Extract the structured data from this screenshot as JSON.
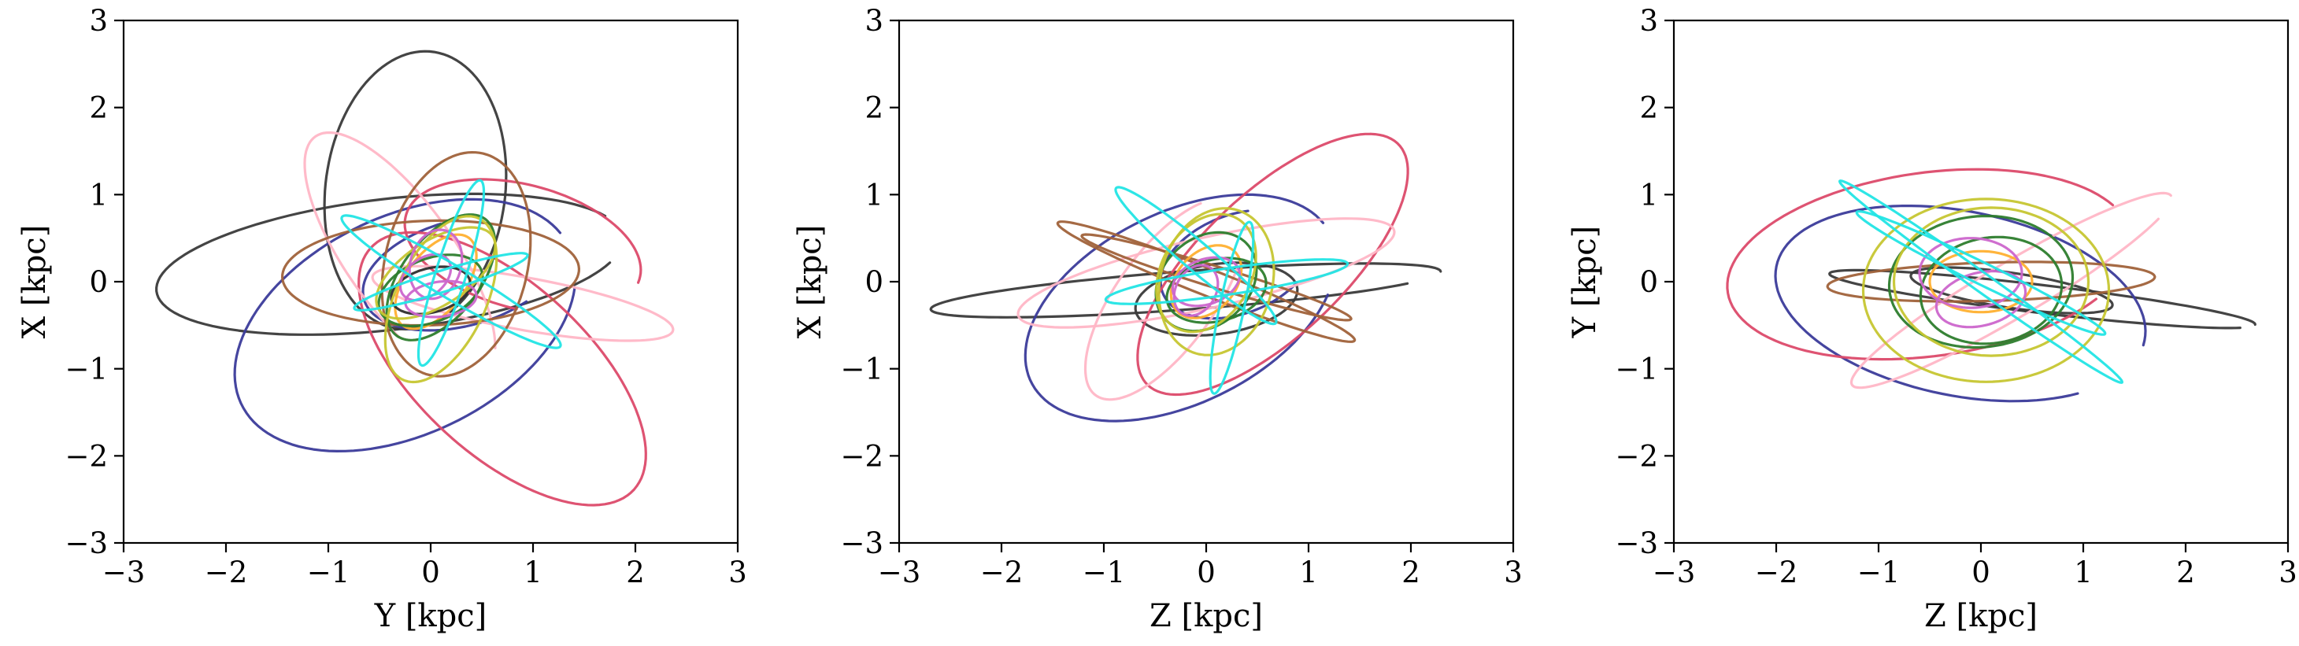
{
  "chart_data": [
    {
      "type": "line",
      "xlabel": "Y [kpc]",
      "ylabel": "X [kpc]",
      "xlim": [
        -3,
        3
      ],
      "ylim": [
        -3,
        3
      ],
      "xticks": [
        -3,
        -2,
        -1,
        0,
        1,
        2,
        3
      ],
      "yticks": [
        -3,
        -2,
        -1,
        0,
        1,
        2,
        3
      ],
      "xtick_labels": [
        "−3",
        "−2",
        "−1",
        "0",
        "1",
        "2",
        "3"
      ],
      "ytick_labels": [
        "−3",
        "−2",
        "−1",
        "0",
        "1",
        "2",
        "3"
      ],
      "series": [
        {
          "color": "#3a3a3a",
          "ellipses": [
            {
              "cx": -0.15,
              "cy": 1.05,
              "a": 1.6,
              "b": 0.88,
              "rot": 85,
              "t0": 60,
              "t1": 420
            },
            {
              "cx": -0.4,
              "cy": 0.2,
              "a": 2.3,
              "b": 0.75,
              "rot": 8,
              "t0": 20,
              "t1": 340
            }
          ]
        },
        {
          "color": "#3b3b9a",
          "ellipses": [
            {
              "cx": -0.25,
              "cy": -0.5,
              "a": 1.85,
              "b": 1.2,
              "rot": 35,
              "t0": 0,
              "t1": 330
            },
            {
              "cx": 0.3,
              "cy": 0.1,
              "a": 1.0,
              "b": 0.6,
              "rot": 20,
              "t0": 80,
              "t1": 300
            }
          ]
        },
        {
          "color": "#dc4a6a",
          "ellipses": [
            {
              "cx": 0.7,
              "cy": -1.0,
              "a": 1.9,
              "b": 0.9,
              "rot": -50,
              "t0": 0,
              "t1": 360
            },
            {
              "cx": 0.9,
              "cy": 0.4,
              "a": 1.2,
              "b": 0.7,
              "rot": -20,
              "t0": 0,
              "t1": 280
            }
          ]
        },
        {
          "color": "#ffb6c6",
          "ellipses": [
            {
              "cx": -0.3,
              "cy": 0.3,
              "a": 1.6,
              "b": 0.55,
              "rot": -60,
              "t0": 30,
              "t1": 300
            },
            {
              "cx": 0.9,
              "cy": -0.25,
              "a": 1.5,
              "b": 0.3,
              "rot": -12,
              "t0": 0,
              "t1": 360
            }
          ]
        },
        {
          "color": "#a0623a",
          "ellipses": [
            {
              "cx": 0.25,
              "cy": 0.2,
              "a": 1.3,
              "b": 0.7,
              "rot": 80,
              "t0": 0,
              "t1": 360
            },
            {
              "cx": 0.0,
              "cy": 0.1,
              "a": 1.45,
              "b": 0.6,
              "rot": 2,
              "t0": 0,
              "t1": 360
            }
          ]
        },
        {
          "color": "#ffb030",
          "ellipses": [
            {
              "cx": 0.05,
              "cy": 0.0,
              "a": 0.6,
              "b": 0.3,
              "rot": 60,
              "t0": 0,
              "t1": 360
            }
          ]
        },
        {
          "color": "#2e2e2e",
          "ellipses": [
            {
              "cx": 0.0,
              "cy": -0.1,
              "a": 0.4,
              "b": 0.25,
              "rot": 20,
              "t0": 0,
              "t1": 360
            }
          ]
        },
        {
          "color": "#2d7d2d",
          "ellipses": [
            {
              "cx": 0.1,
              "cy": 0.05,
              "a": 0.8,
              "b": 0.4,
              "rot": 60,
              "t0": 0,
              "t1": 360
            },
            {
              "cx": 0.0,
              "cy": -0.1,
              "a": 0.55,
              "b": 0.35,
              "rot": 30,
              "t0": 0,
              "t1": 360
            }
          ]
        },
        {
          "color": "#c6c632",
          "ellipses": [
            {
              "cx": 0.1,
              "cy": -0.2,
              "a": 1.0,
              "b": 0.45,
              "rot": 70,
              "t0": 0,
              "t1": 360
            },
            {
              "cx": 0.05,
              "cy": 0.1,
              "a": 0.7,
              "b": 0.35,
              "rot": 40,
              "t0": 0,
              "t1": 360
            }
          ]
        },
        {
          "color": "#cc66cc",
          "ellipses": [
            {
              "cx": 0.05,
              "cy": 0.2,
              "a": 0.4,
              "b": 0.25,
              "rot": 80,
              "t0": 0,
              "t1": 360
            },
            {
              "cx": 0.1,
              "cy": -0.2,
              "a": 0.35,
              "b": 0.2,
              "rot": 10,
              "t0": 0,
              "t1": 360
            },
            {
              "cx": -0.05,
              "cy": 0.05,
              "a": 0.3,
              "b": 0.2,
              "rot": 50,
              "t0": 0,
              "t1": 360
            }
          ]
        },
        {
          "color": "#22e5e5",
          "ellipses": [
            {
              "cx": 0.2,
              "cy": 0.0,
              "a": 1.3,
              "b": 0.18,
              "rot": -35,
              "t0": 0,
              "t1": 360
            },
            {
              "cx": 0.2,
              "cy": 0.1,
              "a": 1.1,
              "b": 0.15,
              "rot": 75,
              "t0": 0,
              "t1": 360
            },
            {
              "cx": 0.1,
              "cy": 0.0,
              "a": 0.9,
              "b": 0.12,
              "rot": 20,
              "t0": 0,
              "t1": 360
            }
          ]
        }
      ]
    },
    {
      "type": "line",
      "xlabel": "Z [kpc]",
      "ylabel": "X [kpc]",
      "xlim": [
        -3,
        3
      ],
      "ylim": [
        -3,
        3
      ],
      "xticks": [
        -3,
        -2,
        -1,
        0,
        1,
        2,
        3
      ],
      "yticks": [
        -3,
        -2,
        -1,
        0,
        1,
        2,
        3
      ],
      "xtick_labels": [
        "−3",
        "−2",
        "−1",
        "0",
        "1",
        "2",
        "3"
      ],
      "ytick_labels": [
        "−3",
        "−2",
        "−1",
        "0",
        "1",
        "2",
        "3"
      ],
      "series": [
        {
          "color": "#3a3a3a",
          "ellipses": [
            {
              "cx": -0.2,
              "cy": -0.1,
              "a": 2.5,
              "b": 0.22,
              "rot": 5,
              "t0": 0,
              "t1": 330
            },
            {
              "cx": 0.1,
              "cy": -0.2,
              "a": 0.8,
              "b": 0.4,
              "rot": 10,
              "t0": 0,
              "t1": 360
            }
          ]
        },
        {
          "color": "#3b3b9a",
          "ellipses": [
            {
              "cx": -0.25,
              "cy": -0.3,
              "a": 1.7,
              "b": 1.05,
              "rot": 35,
              "t0": 0,
              "t1": 320
            },
            {
              "cx": 0.3,
              "cy": 0.2,
              "a": 0.8,
              "b": 0.55,
              "rot": 30,
              "t0": 60,
              "t1": 300
            }
          ]
        },
        {
          "color": "#dc4a6a",
          "ellipses": [
            {
              "cx": 0.65,
              "cy": 0.2,
              "a": 1.85,
              "b": 0.75,
              "rot": 50,
              "t0": 0,
              "t1": 380
            }
          ]
        },
        {
          "color": "#ffb6c6",
          "ellipses": [
            {
              "cx": 0.0,
              "cy": 0.1,
              "a": 1.9,
              "b": 0.4,
              "rot": 15,
              "t0": 0,
              "t1": 360
            },
            {
              "cx": -0.4,
              "cy": -0.2,
              "a": 1.3,
              "b": 0.5,
              "rot": 60,
              "t0": 30,
              "t1": 300
            }
          ]
        },
        {
          "color": "#a0623a",
          "ellipses": [
            {
              "cx": 0.0,
              "cy": 0.0,
              "a": 1.6,
              "b": 0.15,
              "rot": -25,
              "t0": 0,
              "t1": 360
            },
            {
              "cx": 0.1,
              "cy": 0.05,
              "a": 1.4,
              "b": 0.12,
              "rot": -20,
              "t0": 0,
              "t1": 360
            }
          ]
        },
        {
          "color": "#ffb030",
          "ellipses": [
            {
              "cx": 0.0,
              "cy": 0.0,
              "a": 0.45,
              "b": 0.3,
              "rot": 60,
              "t0": 0,
              "t1": 360
            }
          ]
        },
        {
          "color": "#2d7d2d",
          "ellipses": [
            {
              "cx": 0.0,
              "cy": 0.0,
              "a": 0.6,
              "b": 0.45,
              "rot": 60,
              "t0": 0,
              "t1": 360
            },
            {
              "cx": 0.1,
              "cy": -0.1,
              "a": 0.5,
              "b": 0.35,
              "rot": 20,
              "t0": 0,
              "t1": 360
            }
          ]
        },
        {
          "color": "#c6c632",
          "ellipses": [
            {
              "cx": 0.1,
              "cy": 0.0,
              "a": 0.85,
              "b": 0.55,
              "rot": 80,
              "t0": 0,
              "t1": 360
            },
            {
              "cx": 0.0,
              "cy": 0.1,
              "a": 0.7,
              "b": 0.45,
              "rot": 70,
              "t0": 0,
              "t1": 360
            }
          ]
        },
        {
          "color": "#cc66cc",
          "ellipses": [
            {
              "cx": 0.0,
              "cy": 0.0,
              "a": 0.35,
              "b": 0.25,
              "rot": 30,
              "t0": 0,
              "t1": 360
            },
            {
              "cx": -0.1,
              "cy": -0.1,
              "a": 0.3,
              "b": 0.2,
              "rot": 70,
              "t0": 0,
              "t1": 360
            }
          ]
        },
        {
          "color": "#22e5e5",
          "ellipses": [
            {
              "cx": 0.2,
              "cy": 0.0,
              "a": 1.2,
              "b": 0.15,
              "rot": 10,
              "t0": 0,
              "t1": 360
            },
            {
              "cx": -0.1,
              "cy": 0.3,
              "a": 1.1,
              "b": 0.15,
              "rot": -45,
              "t0": 0,
              "t1": 360
            },
            {
              "cx": 0.25,
              "cy": -0.3,
              "a": 1.0,
              "b": 0.12,
              "rot": 80,
              "t0": 0,
              "t1": 360
            }
          ]
        }
      ]
    },
    {
      "type": "line",
      "xlabel": "Z [kpc]",
      "ylabel": "Y [kpc]",
      "xlim": [
        -3,
        3
      ],
      "ylim": [
        -3,
        3
      ],
      "xticks": [
        -3,
        -2,
        -1,
        0,
        1,
        2,
        3
      ],
      "yticks": [
        -3,
        -2,
        -1,
        0,
        1,
        2,
        3
      ],
      "xtick_labels": [
        "−3",
        "−2",
        "−1",
        "0",
        "1",
        "2",
        "3"
      ],
      "ytick_labels": [
        "−3",
        "−2",
        "−1",
        "0",
        "1",
        "2",
        "3"
      ],
      "series": [
        {
          "color": "#3a3a3a",
          "ellipses": [
            {
              "cx": 0.6,
              "cy": -0.2,
              "a": 2.1,
              "b": 0.16,
              "rot": -8,
              "t0": 0,
              "t1": 340
            },
            {
              "cx": 0.3,
              "cy": -0.1,
              "a": 1.0,
              "b": 0.2,
              "rot": -10,
              "t0": 0,
              "t1": 360
            }
          ]
        },
        {
          "color": "#3b3b9a",
          "ellipses": [
            {
              "cx": -0.2,
              "cy": -0.25,
              "a": 1.85,
              "b": 1.05,
              "rot": -15,
              "t0": 0,
              "t1": 320
            }
          ]
        },
        {
          "color": "#dc4a6a",
          "ellipses": [
            {
              "cx": -0.5,
              "cy": 0.2,
              "a": 2.0,
              "b": 1.05,
              "rot": 10,
              "t0": 20,
              "t1": 320
            }
          ]
        },
        {
          "color": "#ffb6c6",
          "ellipses": [
            {
              "cx": 0.3,
              "cy": -0.1,
              "a": 1.9,
              "b": 0.3,
              "rot": 35,
              "t0": 0,
              "t1": 330
            }
          ]
        },
        {
          "color": "#a0623a",
          "ellipses": [
            {
              "cx": 0.1,
              "cy": 0.0,
              "a": 1.6,
              "b": 0.22,
              "rot": 2,
              "t0": 0,
              "t1": 360
            }
          ]
        },
        {
          "color": "#ffb030",
          "ellipses": [
            {
              "cx": 0.0,
              "cy": 0.0,
              "a": 0.5,
              "b": 0.35,
              "rot": 0,
              "t0": 0,
              "t1": 360
            }
          ]
        },
        {
          "color": "#2d7d2d",
          "ellipses": [
            {
              "cx": 0.0,
              "cy": 0.0,
              "a": 0.9,
              "b": 0.75,
              "rot": 10,
              "t0": 0,
              "t1": 360
            },
            {
              "cx": 0.1,
              "cy": -0.1,
              "a": 0.7,
              "b": 0.6,
              "rot": 20,
              "t0": 0,
              "t1": 360
            }
          ]
        },
        {
          "color": "#c6c632",
          "ellipses": [
            {
              "cx": 0.05,
              "cy": -0.1,
              "a": 1.2,
              "b": 1.05,
              "rot": 0,
              "t0": 0,
              "t1": 360
            },
            {
              "cx": 0.1,
              "cy": 0.0,
              "a": 0.95,
              "b": 0.85,
              "rot": 0,
              "t0": 0,
              "t1": 360
            }
          ]
        },
        {
          "color": "#cc66cc",
          "ellipses": [
            {
              "cx": -0.1,
              "cy": 0.1,
              "a": 0.5,
              "b": 0.4,
              "rot": 0,
              "t0": 0,
              "t1": 360
            },
            {
              "cx": 0.0,
              "cy": -0.2,
              "a": 0.45,
              "b": 0.3,
              "rot": 20,
              "t0": 0,
              "t1": 360
            }
          ]
        },
        {
          "color": "#22e5e5",
          "ellipses": [
            {
              "cx": 0.0,
              "cy": 0.0,
              "a": 1.8,
              "b": 0.1,
              "rot": -40,
              "t0": 0,
              "t1": 360
            },
            {
              "cx": 0.0,
              "cy": 0.1,
              "a": 1.4,
              "b": 0.12,
              "rot": -30,
              "t0": 0,
              "t1": 360
            }
          ]
        }
      ]
    }
  ]
}
